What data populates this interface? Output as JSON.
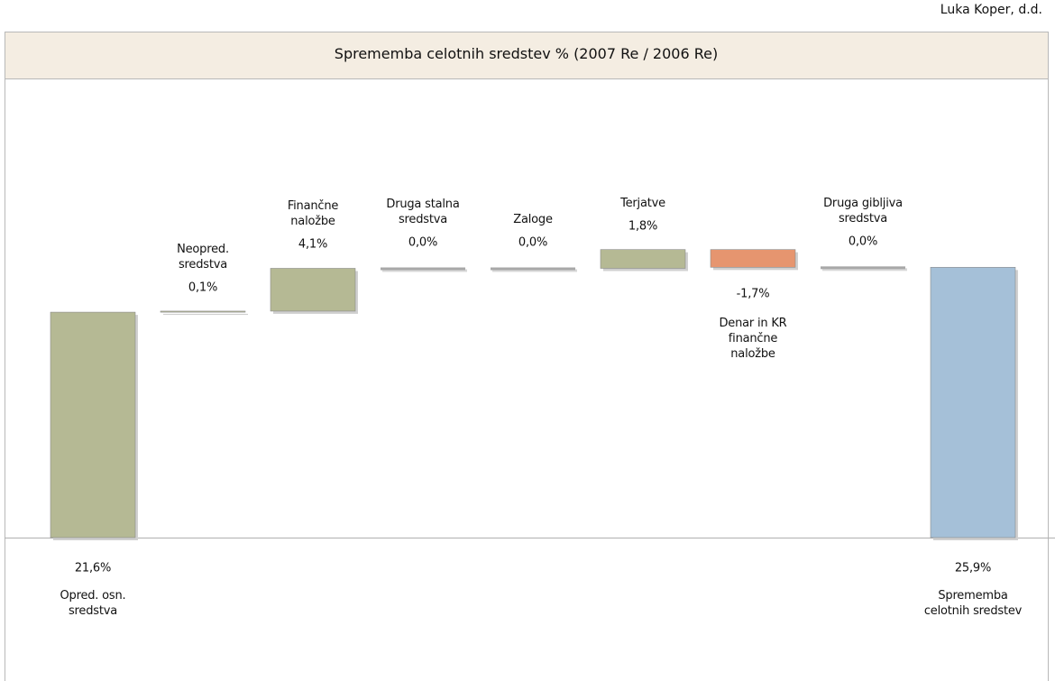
{
  "chart_data": {
    "type": "waterfall",
    "source": "Luka Koper, d.d.",
    "title": "Sprememba celotnih sredstev % (2007 Re / 2006 Re)",
    "categories": [
      "Opred. osn.\nsredstva",
      "Neopred.\nsredstva",
      "Finančne\nnaložbe",
      "Druga stalna\nsredstva",
      "Zaloge",
      "Terjatve",
      "Denar in KR\nfinančne\nnaložbe",
      "Druga gibljiva\nsredstva",
      "Sprememba\ncelotnih sredstev"
    ],
    "values": [
      21.6,
      0.1,
      4.1,
      0.0,
      0.0,
      1.8,
      -1.7,
      0.0,
      25.9
    ],
    "value_labels": [
      "21,6%",
      "0,1%",
      "4,1%",
      "0,0%",
      "0,0%",
      "1,8%",
      "-1,7%",
      "0,0%",
      "25,9%"
    ],
    "colors": {
      "increase": "#b5b994",
      "decrease": "#e6956f",
      "total": "#a5c0d8",
      "zero": "#a8a8a8"
    }
  }
}
